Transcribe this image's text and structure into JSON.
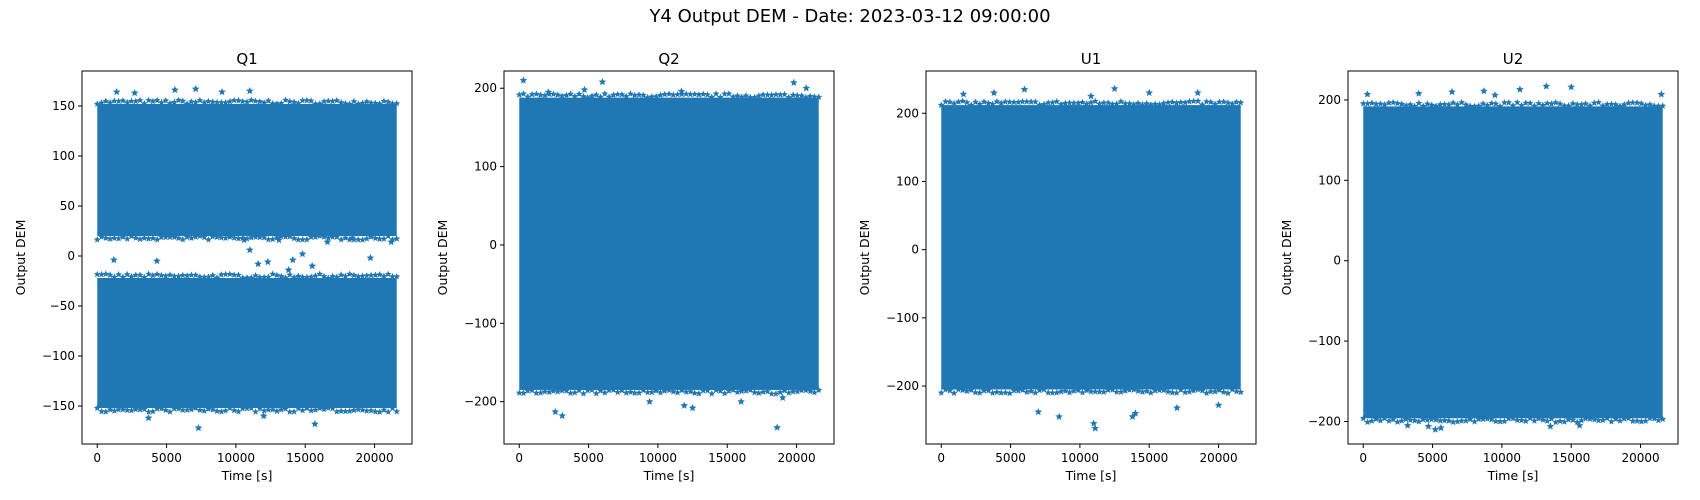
{
  "title": "Y4 Output DEM - Date: 2023-03-12 09:00:00",
  "colors": {
    "marker": "#1f77b4"
  },
  "chart_data": [
    {
      "type": "scatter",
      "title": "Q1",
      "xlabel": "Time [s]",
      "ylabel": "Output DEM",
      "marker": "star",
      "xlim": [
        -1100,
        22700
      ],
      "ylim": [
        -188,
        185
      ],
      "xticks": [
        0,
        5000,
        10000,
        15000,
        20000
      ],
      "yticks": [
        -150,
        -100,
        -50,
        0,
        50,
        100,
        150
      ],
      "x_range": [
        0,
        21600
      ],
      "bands": [
        [
          20,
          152
        ],
        [
          -152,
          -22
        ]
      ],
      "outliers": [
        [
          1200,
          -4
        ],
        [
          4300,
          -5
        ],
        [
          10600,
          16
        ],
        [
          11000,
          6
        ],
        [
          11600,
          -8
        ],
        [
          12300,
          -6
        ],
        [
          13100,
          16
        ],
        [
          13800,
          -14
        ],
        [
          14100,
          -4
        ],
        [
          14800,
          2
        ],
        [
          15500,
          -10
        ],
        [
          16600,
          14
        ],
        [
          18400,
          18
        ],
        [
          19700,
          -2
        ],
        [
          21200,
          14
        ],
        [
          7300,
          -172
        ],
        [
          15700,
          -168
        ],
        [
          12000,
          -160
        ],
        [
          3700,
          -162
        ],
        [
          5600,
          166
        ],
        [
          7100,
          167
        ],
        [
          9000,
          164
        ],
        [
          1400,
          164
        ],
        [
          11000,
          165
        ],
        [
          2700,
          163
        ]
      ]
    },
    {
      "type": "scatter",
      "title": "Q2",
      "xlabel": "Time [s]",
      "ylabel": "Output DEM",
      "marker": "star",
      "xlim": [
        -1100,
        22700
      ],
      "ylim": [
        -254,
        222
      ],
      "xticks": [
        0,
        5000,
        10000,
        15000,
        20000
      ],
      "yticks": [
        -200,
        -100,
        0,
        100,
        200
      ],
      "x_range": [
        0,
        21600
      ],
      "bands": [
        [
          -185,
          188
        ]
      ],
      "outliers": [
        [
          300,
          210
        ],
        [
          6000,
          208
        ],
        [
          19800,
          207
        ],
        [
          20700,
          200
        ],
        [
          4700,
          198
        ],
        [
          2100,
          195
        ],
        [
          11700,
          196
        ],
        [
          2600,
          -213
        ],
        [
          3100,
          -218
        ],
        [
          18600,
          -233
        ],
        [
          9400,
          -200
        ],
        [
          11900,
          -205
        ],
        [
          12500,
          -208
        ],
        [
          16000,
          -200
        ],
        [
          19000,
          -195
        ]
      ]
    },
    {
      "type": "scatter",
      "title": "U1",
      "xlabel": "Time [s]",
      "ylabel": "Output DEM",
      "marker": "star",
      "xlim": [
        -1100,
        22700
      ],
      "ylim": [
        -285,
        262
      ],
      "xticks": [
        0,
        5000,
        10000,
        15000,
        20000
      ],
      "yticks": [
        -200,
        -100,
        0,
        100,
        200
      ],
      "x_range": [
        0,
        21600
      ],
      "bands": [
        [
          -205,
          212
        ]
      ],
      "outliers": [
        [
          6000,
          235
        ],
        [
          12500,
          236
        ],
        [
          10800,
          225
        ],
        [
          15000,
          230
        ],
        [
          18500,
          230
        ],
        [
          1600,
          228
        ],
        [
          3800,
          230
        ],
        [
          7000,
          -238
        ],
        [
          8500,
          -245
        ],
        [
          11000,
          -255
        ],
        [
          11100,
          -262
        ],
        [
          13800,
          -245
        ],
        [
          14000,
          -240
        ],
        [
          17000,
          -232
        ],
        [
          20000,
          -228
        ]
      ]
    },
    {
      "type": "scatter",
      "title": "U2",
      "xlabel": "Time [s]",
      "ylabel": "Output DEM",
      "marker": "star",
      "xlim": [
        -1100,
        22700
      ],
      "ylim": [
        -228,
        236
      ],
      "xticks": [
        0,
        5000,
        10000,
        15000,
        20000
      ],
      "yticks": [
        -200,
        -100,
        0,
        100,
        200
      ],
      "x_range": [
        0,
        21600
      ],
      "bands": [
        [
          -196,
          192
        ]
      ],
      "outliers": [
        [
          300,
          207
        ],
        [
          4000,
          208
        ],
        [
          6400,
          210
        ],
        [
          8700,
          211
        ],
        [
          9500,
          206
        ],
        [
          11300,
          213
        ],
        [
          13200,
          217
        ],
        [
          15000,
          216
        ],
        [
          21500,
          207
        ],
        [
          3200,
          -205
        ],
        [
          4700,
          -206
        ],
        [
          5200,
          -210
        ],
        [
          5600,
          -208
        ],
        [
          13500,
          -206
        ],
        [
          15600,
          -205
        ]
      ]
    }
  ]
}
